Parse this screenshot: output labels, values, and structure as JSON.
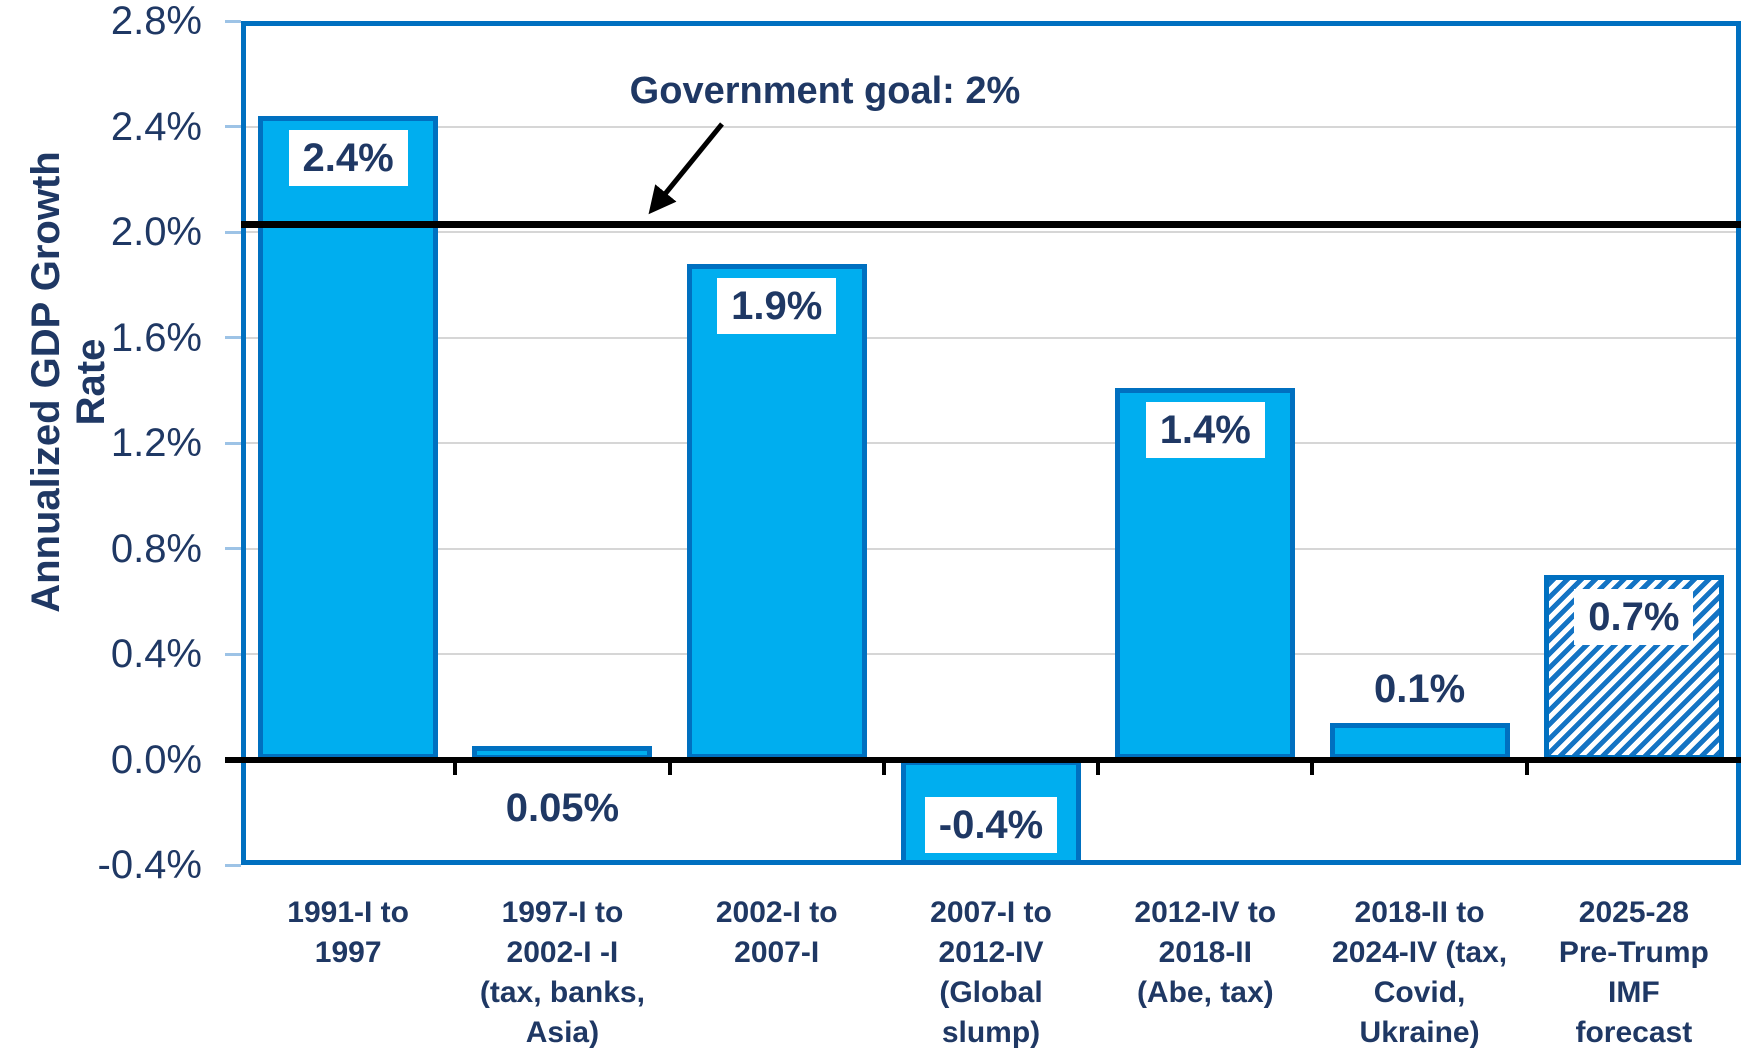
{
  "chart_data": {
    "type": "bar",
    "title": "",
    "xlabel": "",
    "ylabel": "Annualized GDP Growth Rate",
    "ylim": [
      -0.4,
      2.8
    ],
    "ytick_values": [
      2.8,
      2.4,
      2.0,
      1.6,
      1.2,
      0.8,
      0.4,
      0.0,
      -0.4
    ],
    "ytick_labels": [
      "2.8%",
      "2.4%",
      "2.0%",
      "1.6%",
      "1.2%",
      "0.8%",
      "0.4%",
      "0.0%",
      "-0.4%"
    ],
    "grid": "horizontal, light gray",
    "legend": "none",
    "goal": {
      "label": "Government goal: 2%",
      "value": 2.03
    },
    "bars": [
      {
        "category": "1991-I to\n1997",
        "value": 2.44,
        "label": "2.4%",
        "placement": "inside-top",
        "boxed": true,
        "hatched": false
      },
      {
        "category": "1997-I to\n2002-I -I\n(tax, banks,\nAsia)",
        "value": 0.05,
        "label": "0.05%",
        "placement": "below-axis",
        "boxed": false,
        "hatched": false
      },
      {
        "category": "2002-I to\n2007-I",
        "value": 1.88,
        "label": "1.9%",
        "placement": "inside-top",
        "boxed": true,
        "hatched": false
      },
      {
        "category": "2007-I to\n2012-IV\n(Global\nslump)",
        "value": -0.4,
        "label": "-0.4%",
        "placement": "inside-bottom",
        "boxed": true,
        "hatched": false
      },
      {
        "category": "2012-IV to\n2018-II\n(Abe, tax)",
        "value": 1.41,
        "label": "1.4%",
        "placement": "inside-top",
        "boxed": true,
        "hatched": false
      },
      {
        "category": "2018-II to\n2024-IV (tax,\nCovid,\nUkraine)",
        "value": 0.14,
        "label": "0.1%",
        "placement": "above-bar",
        "boxed": false,
        "hatched": false
      },
      {
        "category": "2025-28\nPre-Trump\nIMF\nforecast",
        "value": 0.7,
        "label": "0.7%",
        "placement": "inside-top",
        "boxed": true,
        "hatched": true
      }
    ]
  },
  "colors": {
    "bar_fill": "#00AEEF",
    "bar_border": "#0070C0",
    "plot_border": "#0070C0",
    "gridline": "#D6D6D6",
    "text_navy": "#1F3864",
    "goal_line": "#000000",
    "zero_axis": "#000000",
    "y_tick": "#9DC3E6",
    "hatch_stripe": "#1474C4",
    "hatch_background": "#FFFFFF"
  }
}
